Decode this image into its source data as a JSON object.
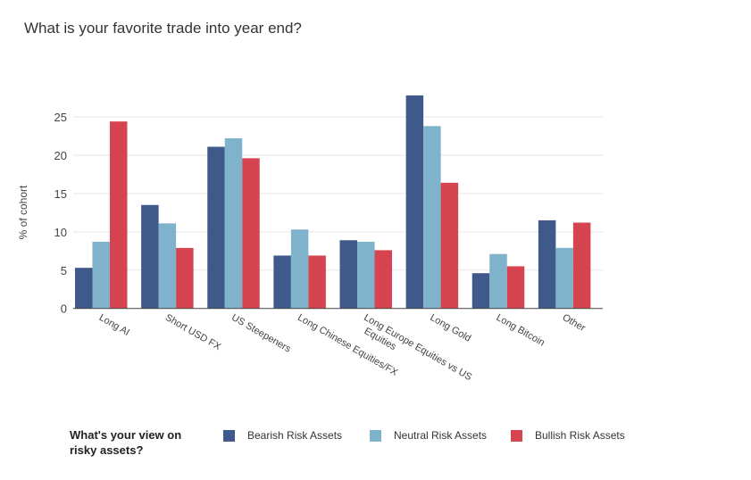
{
  "chart_data": {
    "type": "bar",
    "title": "What is your favorite trade into year end?",
    "ylabel": "% of cohort",
    "xlabel": "",
    "ylim": [
      0,
      28
    ],
    "yticks": [
      0,
      5,
      10,
      15,
      20,
      25
    ],
    "grid": true,
    "categories": [
      "Long AI",
      "Short USD FX",
      "US Steepeners",
      "Long Chinese Equities/FX",
      "Long Europe Equities vs US Equities",
      "Long Gold",
      "Long Bitcoin",
      "Other"
    ],
    "category_lines": [
      [
        "Long AI"
      ],
      [
        "Short USD FX"
      ],
      [
        "US Steepeners"
      ],
      [
        "Long Chinese Equities/FX"
      ],
      [
        "Long Europe Equities vs US",
        "Equities"
      ],
      [
        "Long Gold"
      ],
      [
        "Long Bitcoin"
      ],
      [
        "Other"
      ]
    ],
    "legend_title": [
      "What's your view on",
      "risky assets?"
    ],
    "legend_placement": "bottom",
    "series": [
      {
        "name": "Bearish Risk Assets",
        "color": "#3f5a8a",
        "values": [
          5.3,
          13.5,
          21.1,
          6.9,
          8.9,
          27.8,
          4.6,
          11.5
        ]
      },
      {
        "name": "Neutral Risk Assets",
        "color": "#7fb2cb",
        "values": [
          8.7,
          11.1,
          22.2,
          10.3,
          8.7,
          23.8,
          7.1,
          7.9
        ]
      },
      {
        "name": "Bullish Risk Assets",
        "color": "#d6444f",
        "values": [
          24.4,
          7.9,
          19.6,
          6.9,
          7.6,
          16.4,
          5.5,
          11.2
        ]
      }
    ]
  }
}
